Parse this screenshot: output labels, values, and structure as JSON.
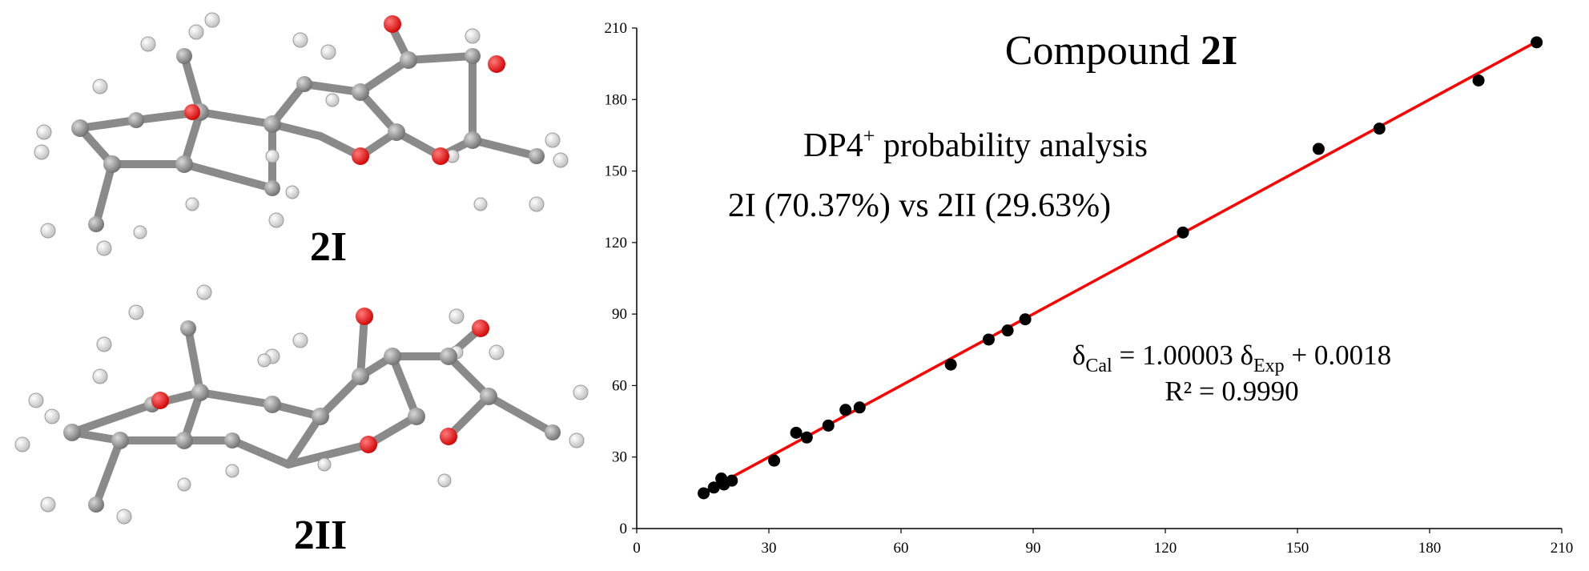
{
  "molecules": {
    "top_label": "2I",
    "bottom_label": "2II"
  },
  "annotations": {
    "dp4_prefix": "DP4",
    "dp4_sup": "+",
    "dp4_suffix": " probability analysis",
    "dp4_result": "2I (70.37%) vs 2II (29.63%)",
    "eq_delta1": "δ",
    "eq_sub1": "Cal",
    "eq_mid": " = 1.00003 δ",
    "eq_sub2": "Exp",
    "eq_tail": " + 0.0018",
    "r2": "R² = 0.9990"
  },
  "colors": {
    "fit_line": "#ff0000",
    "points": "#000000",
    "atom_oxygen": "#ff1a1a",
    "atom_carbon": "#8c8c8c",
    "atom_hydrogen": "#f2f2f2"
  },
  "chart_data": {
    "type": "scatter",
    "title_prefix": "Compound ",
    "title_bold": "2I",
    "xlim": [
      0,
      210
    ],
    "ylim": [
      0,
      210
    ],
    "xticks": [
      0,
      30,
      60,
      90,
      120,
      150,
      180,
      210
    ],
    "yticks": [
      0,
      30,
      60,
      90,
      120,
      150,
      180,
      210
    ],
    "grid": false,
    "x": [
      15.2,
      17.5,
      19.2,
      19.8,
      21.6,
      31.2,
      36.2,
      38.6,
      43.5,
      47.4,
      50.6,
      71.3,
      79.9,
      84.2,
      88.2,
      124.0,
      154.8,
      168.6,
      191.1,
      204.3
    ],
    "y": [
      14.8,
      17.2,
      21.0,
      18.5,
      20.1,
      28.5,
      40.2,
      38.2,
      43.2,
      49.8,
      50.8,
      68.8,
      79.3,
      83.1,
      87.8,
      124.2,
      159.3,
      167.8,
      188.0,
      204.0
    ],
    "fit": {
      "slope": 1.00003,
      "intercept": 0.0018,
      "x_range": [
        15.0,
        205.0
      ]
    }
  }
}
